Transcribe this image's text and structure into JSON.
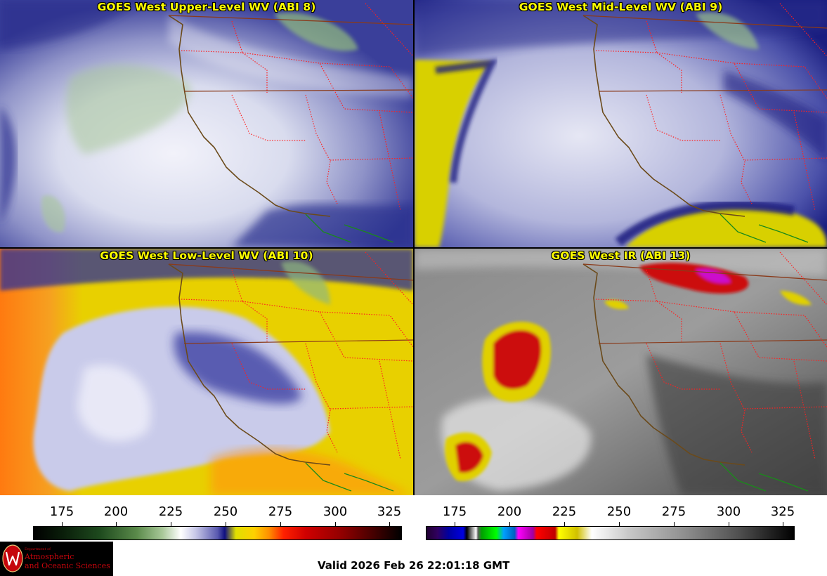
{
  "panels": [
    {
      "title": "GOES West Upper-Level WV (ABI 8)"
    },
    {
      "title": "GOES West Mid-Level WV (ABI 9)"
    },
    {
      "title": "GOES West Low-Level WV (ABI 10)"
    },
    {
      "title": "GOES West IR (ABI 13)"
    }
  ],
  "colorbars": [
    {
      "ticks": [
        "175",
        "200",
        "225",
        "250",
        "275",
        "300",
        "325"
      ]
    },
    {
      "ticks": [
        "175",
        "200",
        "225",
        "250",
        "275",
        "300",
        "325"
      ]
    }
  ],
  "logo": {
    "dept_line": "Department of",
    "line1": "Atmospheric",
    "line2": "and Oceanic Sciences"
  },
  "valid_text": "Valid 2026 Feb 26 22:01:18 GMT",
  "colors": {
    "title_yellow": "#ffff00",
    "border_red": "#ff0000",
    "coast_brown": "#6b4a1a",
    "uw_red": "#c5050c"
  }
}
